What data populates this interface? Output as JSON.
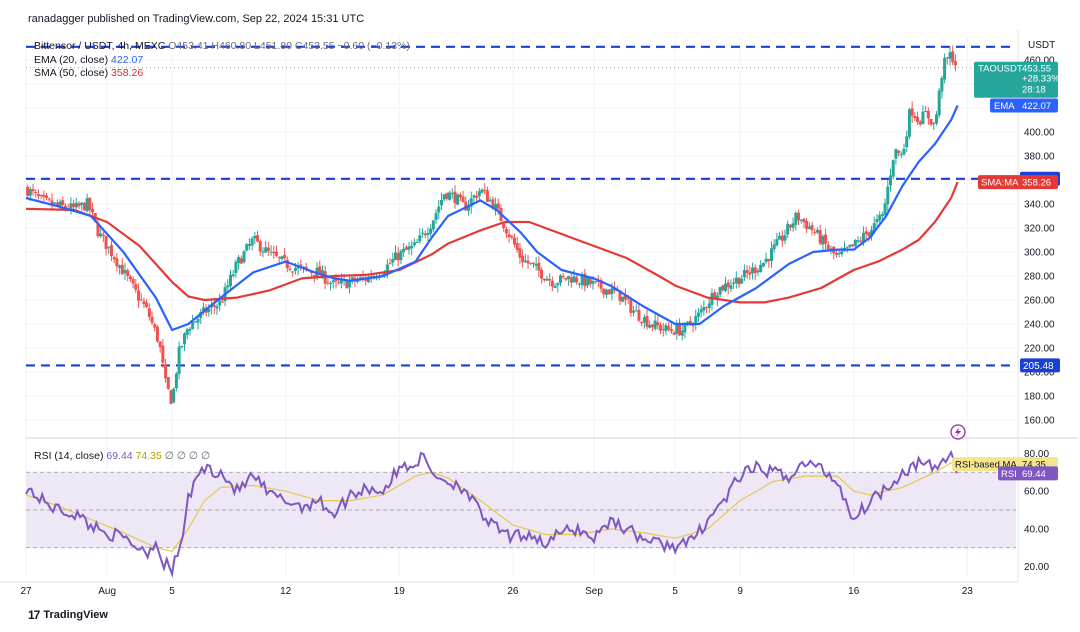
{
  "header": {
    "publisher": "ranadagger published on TradingView.com, Sep 22, 2024 15:31 UTC"
  },
  "legend": {
    "symbol": "Bittensor / USDT, 4h, MEXC",
    "ohlc": "O453.41 H460.80 L451.80 C453.55 −0.60 (−0.13%)",
    "ema_label": "EMA (20, close)",
    "ema_value": "422.07",
    "sma_label": "SMA (50, close)",
    "sma_value": "358.26",
    "rsi_label": "RSI (14, close)",
    "rsi_value": "69.44",
    "rsi_ma_value": "74.35",
    "rsi_extra": "∅ ∅ ∅ ∅"
  },
  "footer": {
    "logo_text": "17",
    "brand": "TradingView"
  },
  "colors": {
    "up": "#26a69a",
    "down": "#ef5350",
    "ema": "#2962ff",
    "sma": "#e53935",
    "rsi": "#7e57c2",
    "rsi_ma": "#e6c84f",
    "level_line": "#1a3fd4",
    "rsi_band": "#ede7f6"
  },
  "chart_data": [
    {
      "type": "candlestick",
      "title": "Bittensor / USDT, 4h, MEXC",
      "currency": "USDT",
      "ylim": [
        150,
        480
      ],
      "y_ticks": [
        160,
        180,
        200,
        220,
        240,
        260,
        280,
        300,
        320,
        340,
        360,
        380,
        400,
        420,
        440,
        460
      ],
      "y_tick_labels": [
        "160.00",
        "180.00",
        "200.00",
        "220.00",
        "240.00",
        "260.00",
        "280.00",
        "300.00",
        "320.00",
        "340.00",
        "360.00",
        "380.00",
        "400.00",
        "420.00",
        "440.00",
        "460.00"
      ],
      "x_ticks": [
        "27",
        "Aug",
        "5",
        "12",
        "19",
        "26",
        "Sep",
        "5",
        "9",
        "16",
        "23"
      ],
      "x_tick_days": [
        0,
        5,
        9,
        16,
        23,
        30,
        35,
        40,
        44,
        51,
        58
      ],
      "x_range_days": [
        0,
        61
      ],
      "horizontal_levels": [
        {
          "value": 471,
          "label": ""
        },
        {
          "value": 361.0,
          "label": "361.00"
        },
        {
          "value": 205.48,
          "label": "205.48"
        }
      ],
      "last_price": {
        "symbol": "TAOUSDT",
        "price": "453.55",
        "change": "+28.33%",
        "countdown": "28:18",
        "value": 453.55
      },
      "ema_tag": {
        "label": "EMA",
        "value": "422.07",
        "y": 422.07
      },
      "sma_tag": {
        "label": "SMA:MA",
        "value": "358.26",
        "y": 358.26
      },
      "price_anchors": [
        [
          0,
          353
        ],
        [
          1,
          342
        ],
        [
          2,
          338
        ],
        [
          3,
          336
        ],
        [
          3.8,
          340
        ],
        [
          4.5,
          315
        ],
        [
          5.5,
          295
        ],
        [
          6.5,
          272
        ],
        [
          7.5,
          250
        ],
        [
          8.2,
          225
        ],
        [
          8.6,
          190
        ],
        [
          9.0,
          175
        ],
        [
          9.4,
          215
        ],
        [
          10,
          238
        ],
        [
          11,
          250
        ],
        [
          12,
          258
        ],
        [
          13,
          290
        ],
        [
          14,
          310
        ],
        [
          15,
          298
        ],
        [
          16,
          290
        ],
        [
          17,
          285
        ],
        [
          18,
          283
        ],
        [
          19,
          272
        ],
        [
          20,
          275
        ],
        [
          21,
          278
        ],
        [
          22,
          285
        ],
        [
          23,
          298
        ],
        [
          24,
          305
        ],
        [
          25,
          325
        ],
        [
          25.8,
          350
        ],
        [
          26.5,
          345
        ],
        [
          27,
          337
        ],
        [
          28,
          352
        ],
        [
          28.8,
          340
        ],
        [
          29.5,
          322
        ],
        [
          30.5,
          295
        ],
        [
          31.5,
          285
        ],
        [
          32.5,
          275
        ],
        [
          33.5,
          279
        ],
        [
          34.5,
          275
        ],
        [
          35.5,
          270
        ],
        [
          36.5,
          265
        ],
        [
          37.5,
          250
        ],
        [
          38.5,
          240
        ],
        [
          39.5,
          235
        ],
        [
          40.5,
          235
        ],
        [
          41.5,
          248
        ],
        [
          42.5,
          268
        ],
        [
          43.5,
          275
        ],
        [
          44.5,
          282
        ],
        [
          45.5,
          292
        ],
        [
          46.5,
          310
        ],
        [
          47.5,
          330
        ],
        [
          48.5,
          318
        ],
        [
          49.5,
          302
        ],
        [
          50,
          295
        ],
        [
          51,
          305
        ],
        [
          52,
          318
        ],
        [
          52.8,
          330
        ],
        [
          53.5,
          385
        ],
        [
          54,
          380
        ],
        [
          54.5,
          420
        ],
        [
          55,
          410
        ],
        [
          55.5,
          415
        ],
        [
          56,
          405
        ],
        [
          56.5,
          455
        ],
        [
          57,
          465
        ],
        [
          57.4,
          453.55
        ]
      ],
      "ema_anchors": [
        [
          0,
          345
        ],
        [
          2,
          338
        ],
        [
          4,
          330
        ],
        [
          6,
          300
        ],
        [
          8,
          262
        ],
        [
          9,
          235
        ],
        [
          10,
          240
        ],
        [
          12,
          262
        ],
        [
          14,
          283
        ],
        [
          16,
          292
        ],
        [
          18,
          282
        ],
        [
          19,
          278
        ],
        [
          20,
          276
        ],
        [
          22,
          280
        ],
        [
          24,
          292
        ],
        [
          25,
          312
        ],
        [
          26,
          330
        ],
        [
          28,
          343
        ],
        [
          29,
          335
        ],
        [
          30.5,
          316
        ],
        [
          31.5,
          300
        ],
        [
          33,
          285
        ],
        [
          35,
          278
        ],
        [
          36,
          272
        ],
        [
          38,
          255
        ],
        [
          40,
          240
        ],
        [
          41.5,
          240
        ],
        [
          43,
          255
        ],
        [
          45,
          270
        ],
        [
          47,
          290
        ],
        [
          48.5,
          300
        ],
        [
          50,
          302
        ],
        [
          51,
          302
        ],
        [
          52,
          312
        ],
        [
          53,
          330
        ],
        [
          54,
          355
        ],
        [
          55,
          375
        ],
        [
          56,
          390
        ],
        [
          57,
          410
        ],
        [
          57.4,
          422.07
        ]
      ],
      "sma_anchors": [
        [
          0,
          336
        ],
        [
          3,
          335
        ],
        [
          5,
          325
        ],
        [
          7,
          305
        ],
        [
          9,
          275
        ],
        [
          10,
          263
        ],
        [
          11,
          260
        ],
        [
          13,
          262
        ],
        [
          15,
          268
        ],
        [
          17,
          278
        ],
        [
          19,
          280
        ],
        [
          21,
          281
        ],
        [
          23,
          285
        ],
        [
          25,
          298
        ],
        [
          26,
          307
        ],
        [
          28,
          318
        ],
        [
          29.5,
          325
        ],
        [
          31,
          325
        ],
        [
          33,
          315
        ],
        [
          35,
          305
        ],
        [
          37,
          295
        ],
        [
          39,
          280
        ],
        [
          40,
          272
        ],
        [
          42,
          262
        ],
        [
          44,
          258
        ],
        [
          45.5,
          258
        ],
        [
          47,
          262
        ],
        [
          49,
          270
        ],
        [
          51,
          285
        ],
        [
          52.5,
          292
        ],
        [
          54,
          302
        ],
        [
          55,
          310
        ],
        [
          56,
          325
        ],
        [
          57,
          345
        ],
        [
          57.4,
          358.26
        ]
      ]
    },
    {
      "type": "line",
      "title": "RSI (14, close)",
      "ylim": [
        15,
        85
      ],
      "y_ticks": [
        20,
        40,
        60,
        80
      ],
      "y_tick_labels": [
        "20.00",
        "40.00",
        "60.00",
        "80.00"
      ],
      "band": [
        30,
        70
      ],
      "midline": 50,
      "rsi_tag": {
        "label": "RSI",
        "value": "69.44",
        "y": 69.44
      },
      "rsi_ma_tag": {
        "label": "RSI-based MA",
        "value": "74.35",
        "y": 74.35
      },
      "rsi_anchors": [
        [
          0,
          62
        ],
        [
          1,
          55
        ],
        [
          2,
          50
        ],
        [
          3,
          48
        ],
        [
          4,
          42
        ],
        [
          5,
          38
        ],
        [
          6,
          35
        ],
        [
          7,
          30
        ],
        [
          7.5,
          28
        ],
        [
          8,
          33
        ],
        [
          8.5,
          22
        ],
        [
          9,
          18
        ],
        [
          9.5,
          30
        ],
        [
          10,
          55
        ],
        [
          10.5,
          68
        ],
        [
          11,
          72
        ],
        [
          12,
          70
        ],
        [
          13,
          60
        ],
        [
          14,
          68
        ],
        [
          15,
          58
        ],
        [
          16,
          55
        ],
        [
          17,
          52
        ],
        [
          18,
          55
        ],
        [
          19,
          48
        ],
        [
          20,
          58
        ],
        [
          21,
          62
        ],
        [
          22,
          60
        ],
        [
          23,
          72
        ],
        [
          24,
          75
        ],
        [
          24.5,
          78
        ],
        [
          25,
          70
        ],
        [
          26,
          65
        ],
        [
          27,
          62
        ],
        [
          28,
          48
        ],
        [
          29,
          40
        ],
        [
          30,
          35
        ],
        [
          31,
          38
        ],
        [
          32,
          32
        ],
        [
          33,
          38
        ],
        [
          34,
          40
        ],
        [
          35,
          35
        ],
        [
          36,
          45
        ],
        [
          37,
          40
        ],
        [
          38,
          35
        ],
        [
          39,
          32
        ],
        [
          40,
          31
        ],
        [
          41,
          33
        ],
        [
          42,
          45
        ],
        [
          43,
          55
        ],
        [
          44,
          68
        ],
        [
          45,
          72
        ],
        [
          46,
          70
        ],
        [
          47,
          68
        ],
        [
          48,
          75
        ],
        [
          49,
          72
        ],
        [
          50,
          65
        ],
        [
          51,
          45
        ],
        [
          52,
          55
        ],
        [
          53,
          62
        ],
        [
          54,
          70
        ],
        [
          55,
          75
        ],
        [
          56,
          72
        ],
        [
          57,
          80
        ],
        [
          57.4,
          69.44
        ]
      ],
      "rsi_ma_anchors": [
        [
          0,
          58
        ],
        [
          2,
          52
        ],
        [
          4,
          45
        ],
        [
          6,
          38
        ],
        [
          8,
          30
        ],
        [
          9,
          28
        ],
        [
          10,
          40
        ],
        [
          11,
          55
        ],
        [
          12,
          62
        ],
        [
          14,
          63
        ],
        [
          16,
          60
        ],
        [
          18,
          55
        ],
        [
          20,
          55
        ],
        [
          22,
          58
        ],
        [
          24,
          68
        ],
        [
          25,
          70
        ],
        [
          26,
          67
        ],
        [
          28,
          55
        ],
        [
          30,
          42
        ],
        [
          32,
          37
        ],
        [
          34,
          37
        ],
        [
          36,
          40
        ],
        [
          38,
          38
        ],
        [
          40,
          35
        ],
        [
          42,
          40
        ],
        [
          44,
          55
        ],
        [
          46,
          65
        ],
        [
          48,
          68
        ],
        [
          50,
          68
        ],
        [
          51,
          60
        ],
        [
          52,
          58
        ],
        [
          54,
          62
        ],
        [
          56,
          70
        ],
        [
          57,
          75
        ],
        [
          57.4,
          74.35
        ]
      ]
    }
  ]
}
